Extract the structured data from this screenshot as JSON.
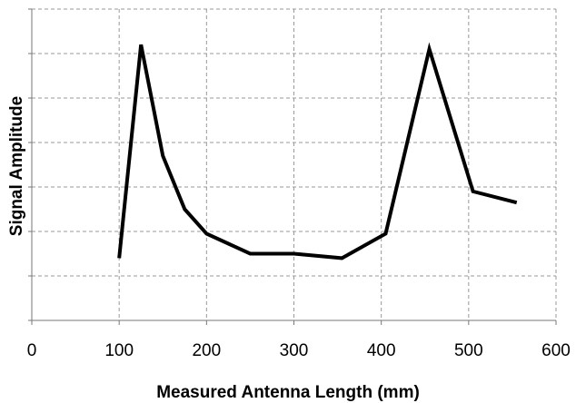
{
  "chart_data": {
    "type": "line",
    "xlabel": "Measured Antenna Length  (mm)",
    "ylabel": "Signal Amplitude",
    "xlim": [
      0,
      600
    ],
    "ylim": [
      0,
      7
    ],
    "xticks": [
      0,
      100,
      200,
      300,
      400,
      500,
      600
    ],
    "yticks": [
      0,
      1,
      2,
      3,
      4,
      5,
      6,
      7
    ],
    "y_tick_labels_shown": false,
    "grid": true,
    "grid_style": "dashed",
    "legend": "none",
    "series": [
      {
        "color": "#000000",
        "x": [
          100,
          125,
          150,
          175,
          200,
          250,
          300,
          355,
          405,
          455,
          505,
          555
        ],
        "y": [
          1.4,
          6.2,
          3.7,
          2.5,
          1.95,
          1.5,
          1.5,
          1.4,
          1.95,
          6.1,
          2.9,
          2.65
        ]
      }
    ]
  }
}
